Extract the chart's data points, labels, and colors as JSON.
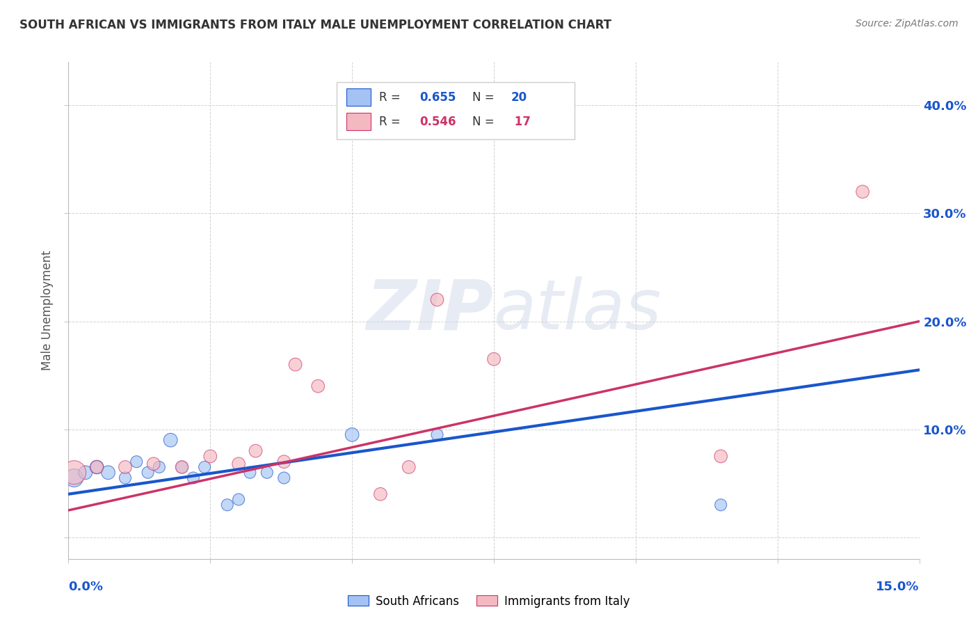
{
  "title": "SOUTH AFRICAN VS IMMIGRANTS FROM ITALY MALE UNEMPLOYMENT CORRELATION CHART",
  "source": "Source: ZipAtlas.com",
  "ylabel": "Male Unemployment",
  "ytick_labels": [
    "",
    "10.0%",
    "20.0%",
    "30.0%",
    "40.0%"
  ],
  "xlim": [
    0.0,
    0.15
  ],
  "ylim": [
    -0.02,
    0.44
  ],
  "blue_color": "#a4c2f4",
  "pink_color": "#f4b8c1",
  "blue_line_color": "#1a56cc",
  "pink_line_color": "#cc3366",
  "watermark_zip": "ZIP",
  "watermark_atlas": "atlas",
  "south_africans_x": [
    0.001,
    0.003,
    0.005,
    0.007,
    0.01,
    0.012,
    0.014,
    0.016,
    0.018,
    0.02,
    0.022,
    0.024,
    0.028,
    0.03,
    0.032,
    0.035,
    0.038,
    0.05,
    0.065,
    0.115
  ],
  "south_africans_y": [
    0.055,
    0.06,
    0.065,
    0.06,
    0.055,
    0.07,
    0.06,
    0.065,
    0.09,
    0.065,
    0.055,
    0.065,
    0.03,
    0.035,
    0.06,
    0.06,
    0.055,
    0.095,
    0.095,
    0.03
  ],
  "south_africans_size": [
    350,
    200,
    200,
    200,
    150,
    150,
    150,
    150,
    200,
    150,
    150,
    150,
    150,
    150,
    150,
    150,
    150,
    200,
    150,
    150
  ],
  "immigrants_x": [
    0.001,
    0.005,
    0.01,
    0.015,
    0.02,
    0.025,
    0.03,
    0.033,
    0.038,
    0.04,
    0.044,
    0.055,
    0.06,
    0.065,
    0.075,
    0.115,
    0.14
  ],
  "immigrants_y": [
    0.06,
    0.065,
    0.065,
    0.068,
    0.065,
    0.075,
    0.068,
    0.08,
    0.07,
    0.16,
    0.14,
    0.04,
    0.065,
    0.22,
    0.165,
    0.075,
    0.32
  ],
  "immigrants_size": [
    600,
    180,
    180,
    180,
    180,
    180,
    180,
    180,
    180,
    180,
    180,
    180,
    180,
    180,
    180,
    180,
    180
  ],
  "blue_trend_x": [
    0.0,
    0.15
  ],
  "blue_trend_y": [
    0.04,
    0.155
  ],
  "pink_trend_x": [
    0.0,
    0.15
  ],
  "pink_trend_y": [
    0.025,
    0.2
  ]
}
